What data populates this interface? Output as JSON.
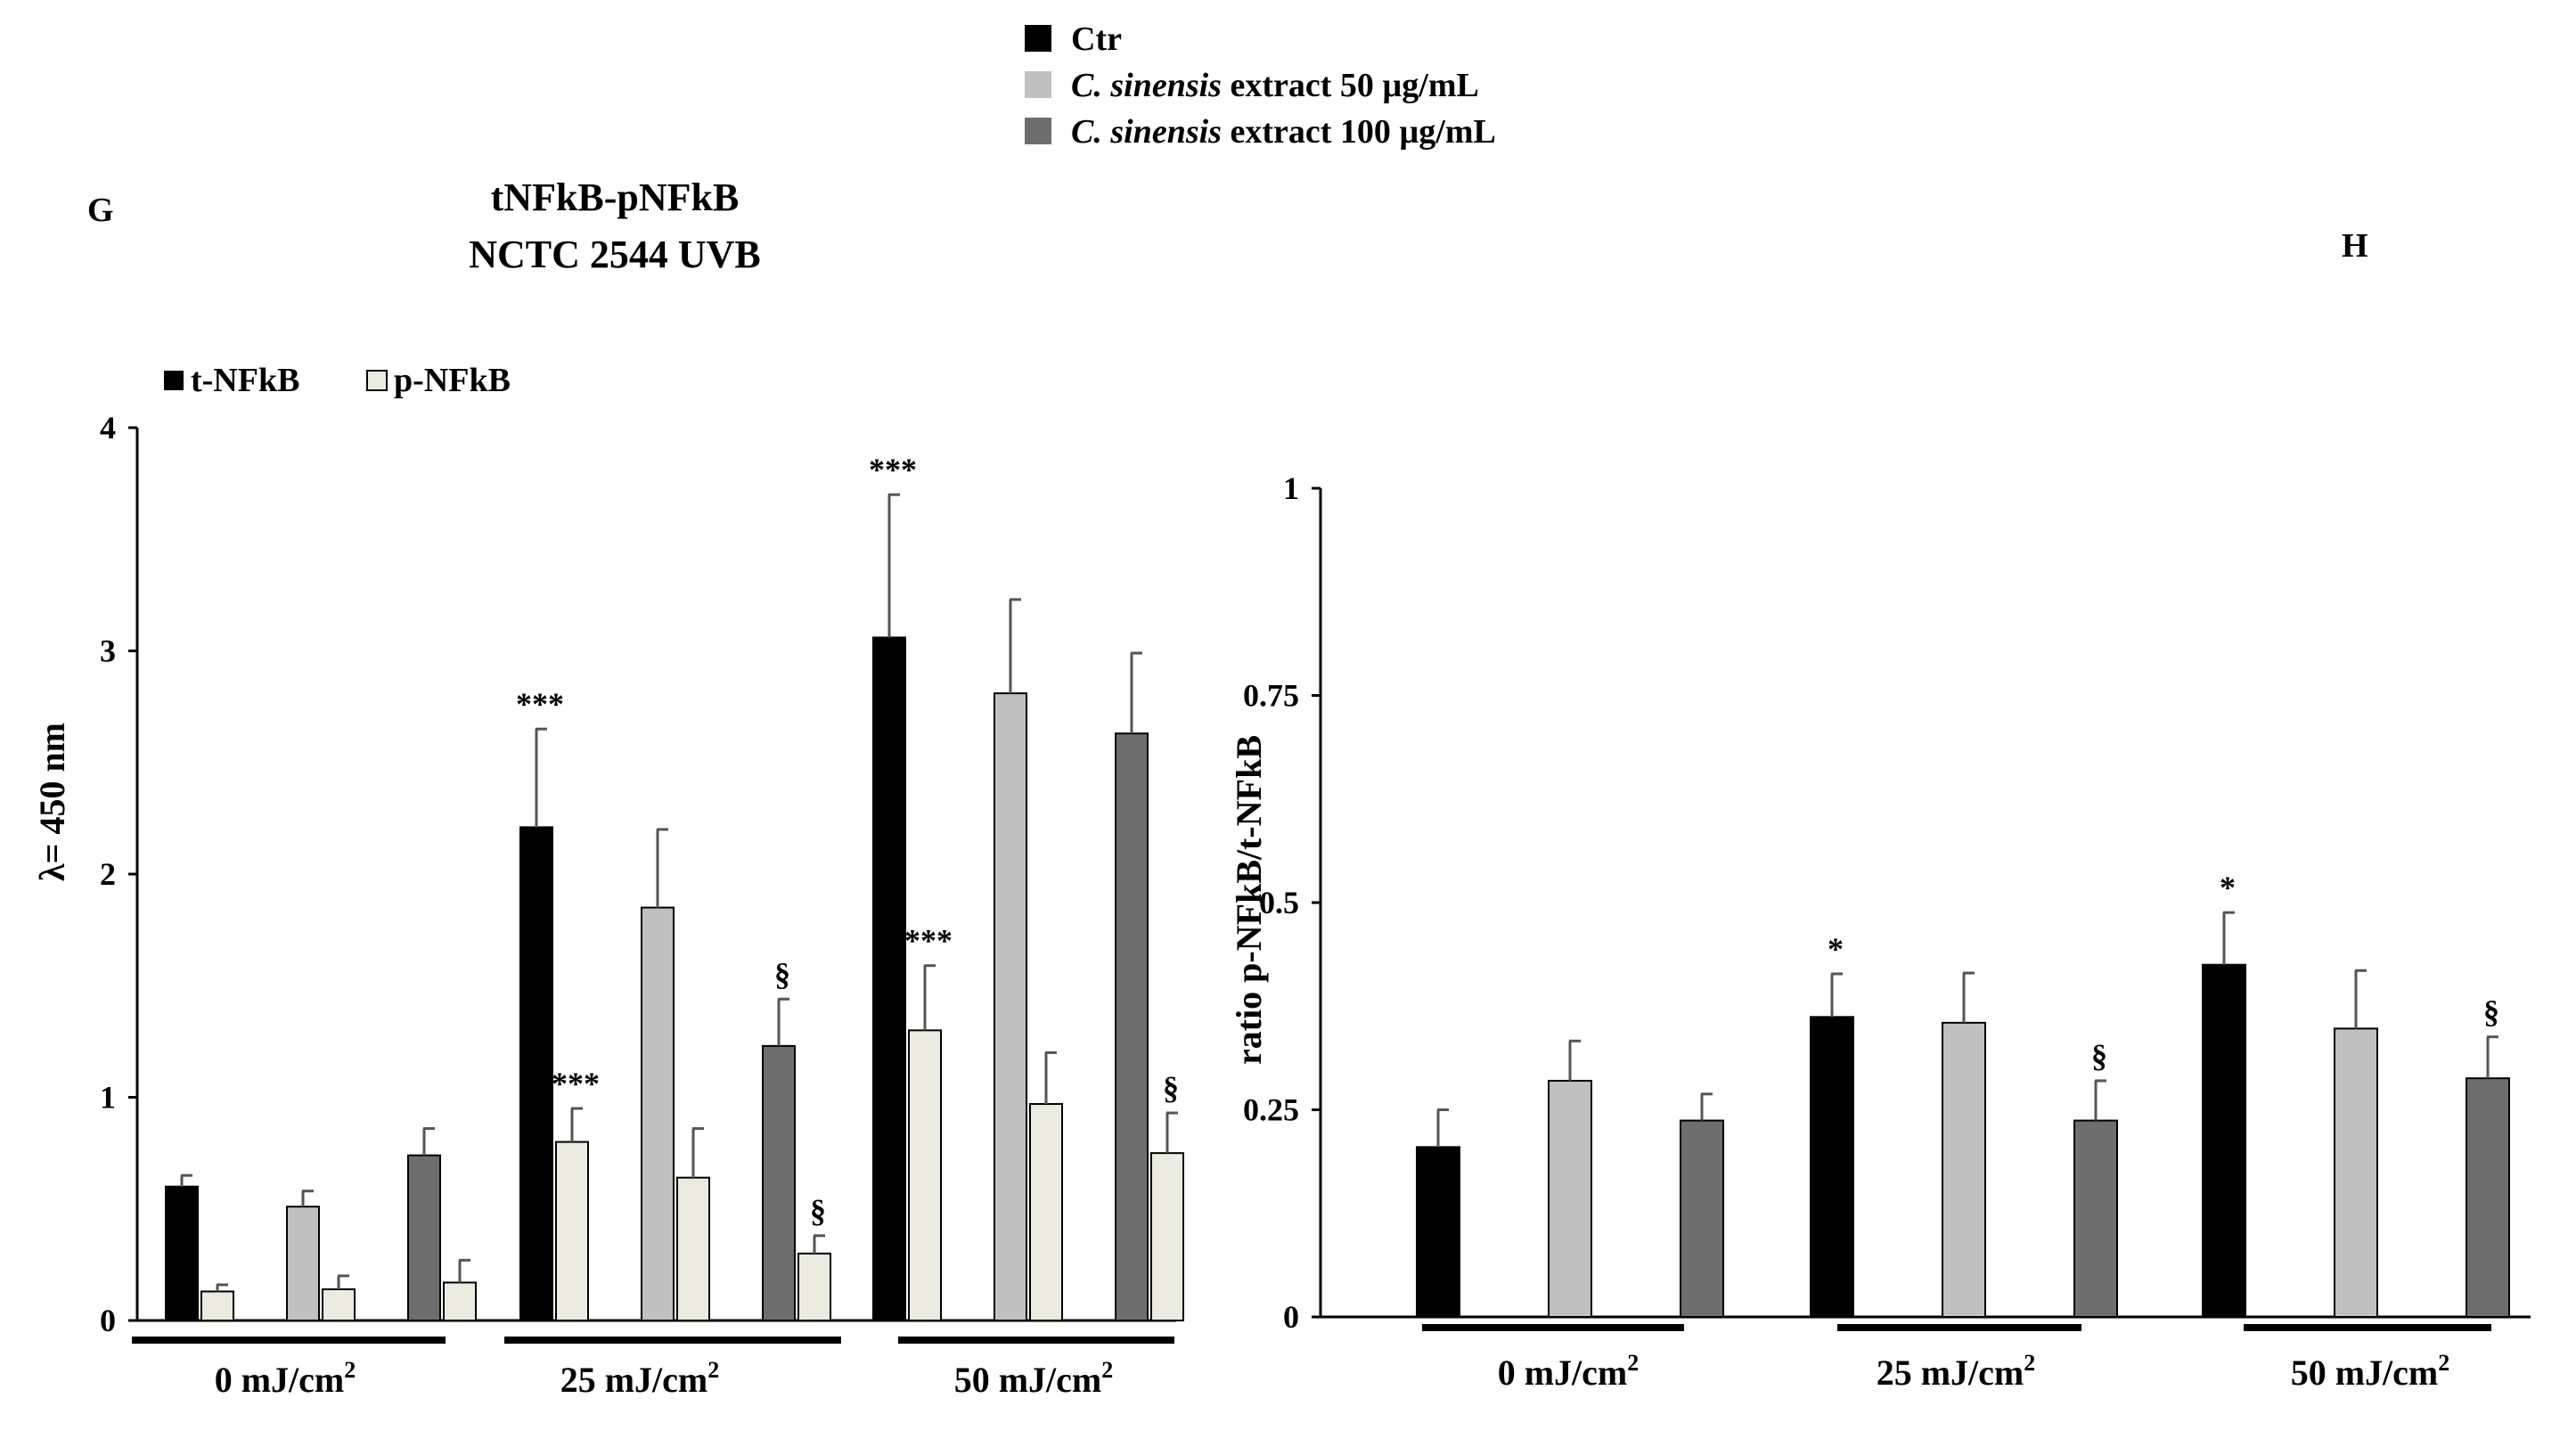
{
  "legend_top": {
    "entries": [
      {
        "label_italic": "",
        "label_rest": "Ctr",
        "color": "#000000"
      },
      {
        "label_italic": "C. sinensis",
        "label_rest": " extract 50 µg/mL",
        "color": "#c0c0c0"
      },
      {
        "label_italic": "C. sinensis",
        "label_rest": " extract 100 µg/mL",
        "color": "#6e6e6e"
      }
    ]
  },
  "panel_G": {
    "letter": "G",
    "title_line1": "tNFkB-pNFkB",
    "title_line2": "NCTC 2544 UVB"
  },
  "panel_H": {
    "letter": "H"
  },
  "chart_data": [
    {
      "id": "G",
      "type": "bar",
      "title": "tNFkB-pNFkB NCTC 2544 UVB",
      "ylabel": "λ= 450 nm",
      "ylim": [
        0,
        4
      ],
      "yticks": [
        "0",
        "1",
        "2",
        "3",
        "4"
      ],
      "legend": [
        {
          "name": "t-NFkB",
          "color": "#000000"
        },
        {
          "name": "p-NFkB",
          "color": "#ecebe0"
        }
      ],
      "group_labels": [
        "0 mJ/cm2",
        "25 mJ/cm2",
        "50 mJ/cm2"
      ],
      "bars": [
        {
          "group": 0,
          "sub": 0,
          "series": "t-NFkB",
          "value": 0.6,
          "err": 0.05,
          "color": "#000000",
          "mark": ""
        },
        {
          "group": 0,
          "sub": 0,
          "series": "p-NFkB",
          "value": 0.13,
          "err": 0.03,
          "color": "#ecebe0",
          "mark": ""
        },
        {
          "group": 0,
          "sub": 1,
          "series": "t-NFkB",
          "value": 0.51,
          "err": 0.07,
          "color": "#c0c0c0",
          "mark": ""
        },
        {
          "group": 0,
          "sub": 1,
          "series": "p-NFkB",
          "value": 0.14,
          "err": 0.06,
          "color": "#ecebe0",
          "mark": ""
        },
        {
          "group": 0,
          "sub": 2,
          "series": "t-NFkB",
          "value": 0.74,
          "err": 0.12,
          "color": "#6e6e6e",
          "mark": ""
        },
        {
          "group": 0,
          "sub": 2,
          "series": "p-NFkB",
          "value": 0.17,
          "err": 0.1,
          "color": "#ecebe0",
          "mark": ""
        },
        {
          "group": 1,
          "sub": 0,
          "series": "t-NFkB",
          "value": 2.21,
          "err": 0.44,
          "color": "#000000",
          "mark": "***"
        },
        {
          "group": 1,
          "sub": 0,
          "series": "p-NFkB",
          "value": 0.8,
          "err": 0.15,
          "color": "#ecebe0",
          "mark": "***"
        },
        {
          "group": 1,
          "sub": 1,
          "series": "t-NFkB",
          "value": 1.85,
          "err": 0.35,
          "color": "#c0c0c0",
          "mark": ""
        },
        {
          "group": 1,
          "sub": 1,
          "series": "p-NFkB",
          "value": 0.64,
          "err": 0.22,
          "color": "#ecebe0",
          "mark": ""
        },
        {
          "group": 1,
          "sub": 2,
          "series": "t-NFkB",
          "value": 1.23,
          "err": 0.21,
          "color": "#6e6e6e",
          "mark": "§"
        },
        {
          "group": 1,
          "sub": 2,
          "series": "p-NFkB",
          "value": 0.3,
          "err": 0.08,
          "color": "#ecebe0",
          "mark": "§"
        },
        {
          "group": 2,
          "sub": 0,
          "series": "t-NFkB",
          "value": 3.06,
          "err": 0.64,
          "color": "#000000",
          "mark": "***"
        },
        {
          "group": 2,
          "sub": 0,
          "series": "p-NFkB",
          "value": 1.3,
          "err": 0.29,
          "color": "#ecebe0",
          "mark": "***"
        },
        {
          "group": 2,
          "sub": 1,
          "series": "t-NFkB",
          "value": 2.81,
          "err": 0.42,
          "color": "#c0c0c0",
          "mark": ""
        },
        {
          "group": 2,
          "sub": 1,
          "series": "p-NFkB",
          "value": 0.97,
          "err": 0.23,
          "color": "#ecebe0",
          "mark": ""
        },
        {
          "group": 2,
          "sub": 2,
          "series": "t-NFkB",
          "value": 2.63,
          "err": 0.36,
          "color": "#6e6e6e",
          "mark": ""
        },
        {
          "group": 2,
          "sub": 2,
          "series": "p-NFkB",
          "value": 0.75,
          "err": 0.18,
          "color": "#ecebe0",
          "mark": "§"
        }
      ]
    },
    {
      "id": "H",
      "type": "bar",
      "title": "",
      "ylabel": "ratio p-NFkB/t-NFkB",
      "ylim": [
        0,
        1
      ],
      "yticks": [
        "0",
        "0.25",
        "0.5",
        "0.75",
        "1"
      ],
      "group_labels": [
        "0 mJ/cm2",
        "25 mJ/cm2",
        "50 mJ/cm2"
      ],
      "bars": [
        {
          "group": 0,
          "sub": 0,
          "value": 0.205,
          "err": 0.045,
          "color": "#000000",
          "mark": ""
        },
        {
          "group": 0,
          "sub": 1,
          "value": 0.285,
          "err": 0.048,
          "color": "#c0c0c0",
          "mark": ""
        },
        {
          "group": 0,
          "sub": 2,
          "value": 0.237,
          "err": 0.032,
          "color": "#6e6e6e",
          "mark": ""
        },
        {
          "group": 1,
          "sub": 0,
          "value": 0.362,
          "err": 0.052,
          "color": "#000000",
          "mark": "*"
        },
        {
          "group": 1,
          "sub": 1,
          "value": 0.355,
          "err": 0.06,
          "color": "#c0c0c0",
          "mark": ""
        },
        {
          "group": 1,
          "sub": 2,
          "value": 0.237,
          "err": 0.048,
          "color": "#6e6e6e",
          "mark": "§"
        },
        {
          "group": 2,
          "sub": 0,
          "value": 0.425,
          "err": 0.063,
          "color": "#000000",
          "mark": "*"
        },
        {
          "group": 2,
          "sub": 1,
          "value": 0.348,
          "err": 0.07,
          "color": "#c0c0c0",
          "mark": ""
        },
        {
          "group": 2,
          "sub": 2,
          "value": 0.288,
          "err": 0.05,
          "color": "#6e6e6e",
          "mark": "§"
        }
      ]
    }
  ]
}
